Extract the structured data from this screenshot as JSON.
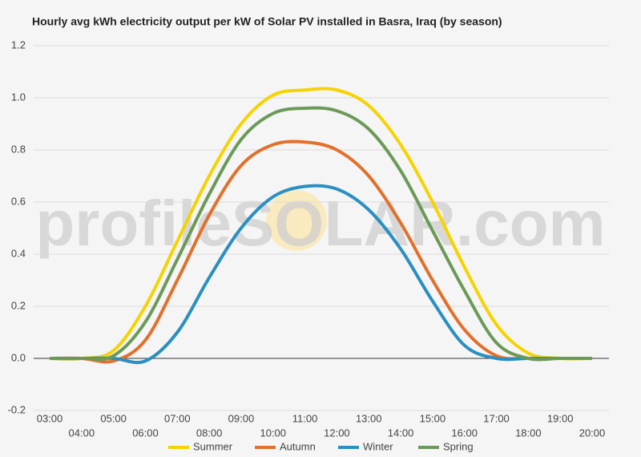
{
  "chart_data": {
    "type": "line",
    "title": "Hourly avg kWh electricity output per kW of Solar PV installed in Basra, Iraq (by season)",
    "watermark": "profileSOLAR.com",
    "categories": [
      "03:00",
      "04:00",
      "05:00",
      "06:00",
      "07:00",
      "08:00",
      "09:00",
      "10:00",
      "11:00",
      "12:00",
      "13:00",
      "14:00",
      "15:00",
      "16:00",
      "17:00",
      "18:00",
      "19:00",
      "20:00"
    ],
    "series": [
      {
        "name": "Summer",
        "color": "#f6d300",
        "values": [
          0,
          0,
          0.03,
          0.2,
          0.45,
          0.7,
          0.9,
          1.01,
          1.03,
          1.03,
          0.97,
          0.82,
          0.6,
          0.35,
          0.13,
          0.02,
          0,
          0
        ]
      },
      {
        "name": "Autumn",
        "color": "#e2702b",
        "values": [
          0,
          0,
          -0.01,
          0.07,
          0.3,
          0.55,
          0.74,
          0.82,
          0.83,
          0.8,
          0.7,
          0.52,
          0.3,
          0.11,
          0.01,
          0,
          0,
          0
        ]
      },
      {
        "name": "Winter",
        "color": "#2a8fc1",
        "values": [
          0,
          0,
          0,
          -0.01,
          0.1,
          0.31,
          0.5,
          0.62,
          0.66,
          0.65,
          0.57,
          0.42,
          0.22,
          0.05,
          0,
          0,
          0,
          0
        ]
      },
      {
        "name": "Spring",
        "color": "#6b9a58",
        "values": [
          0,
          0,
          0.01,
          0.14,
          0.38,
          0.63,
          0.84,
          0.94,
          0.96,
          0.95,
          0.88,
          0.72,
          0.49,
          0.26,
          0.06,
          0,
          0,
          0
        ]
      }
    ],
    "ylim": [
      -0.2,
      1.2
    ],
    "yticks": [
      -0.2,
      {
        "value": 0,
        "label": "0.0"
      },
      0.2,
      0.4,
      0.6,
      0.8,
      {
        "value": 1,
        "label": "1.0"
      },
      1.2
    ],
    "grid": true,
    "legend": "bottom"
  }
}
